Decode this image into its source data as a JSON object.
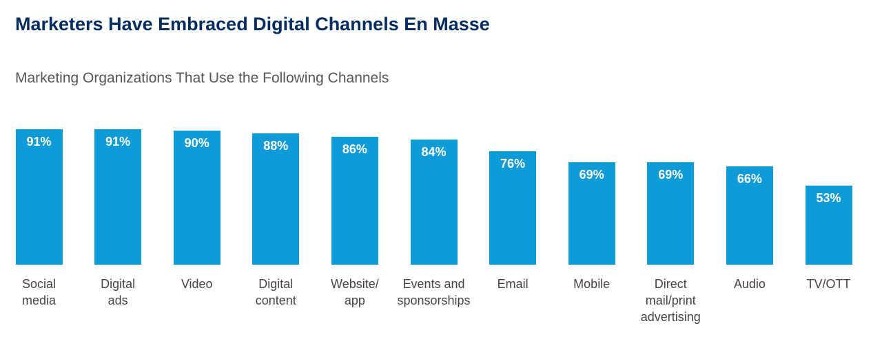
{
  "chart_data": {
    "type": "bar",
    "title": "Marketers Have Embraced Digital Channels En Masse",
    "subtitle": "Marketing Organizations That Use the Following Channels",
    "categories": [
      "Social\nmedia",
      "Digital\nads",
      "Video",
      "Digital\ncontent",
      "Website/\napp",
      "Events and\nsponsorships",
      "Email",
      "Mobile",
      "Direct\nmail/print\nadvertising",
      "Audio",
      "TV/OTT"
    ],
    "values": [
      91,
      91,
      90,
      88,
      86,
      84,
      76,
      69,
      69,
      66,
      53
    ],
    "value_labels": [
      "91%",
      "91%",
      "90%",
      "88%",
      "86%",
      "84%",
      "76%",
      "69%",
      "69%",
      "66%",
      "53%"
    ],
    "color": "#0e9bd8"
  }
}
